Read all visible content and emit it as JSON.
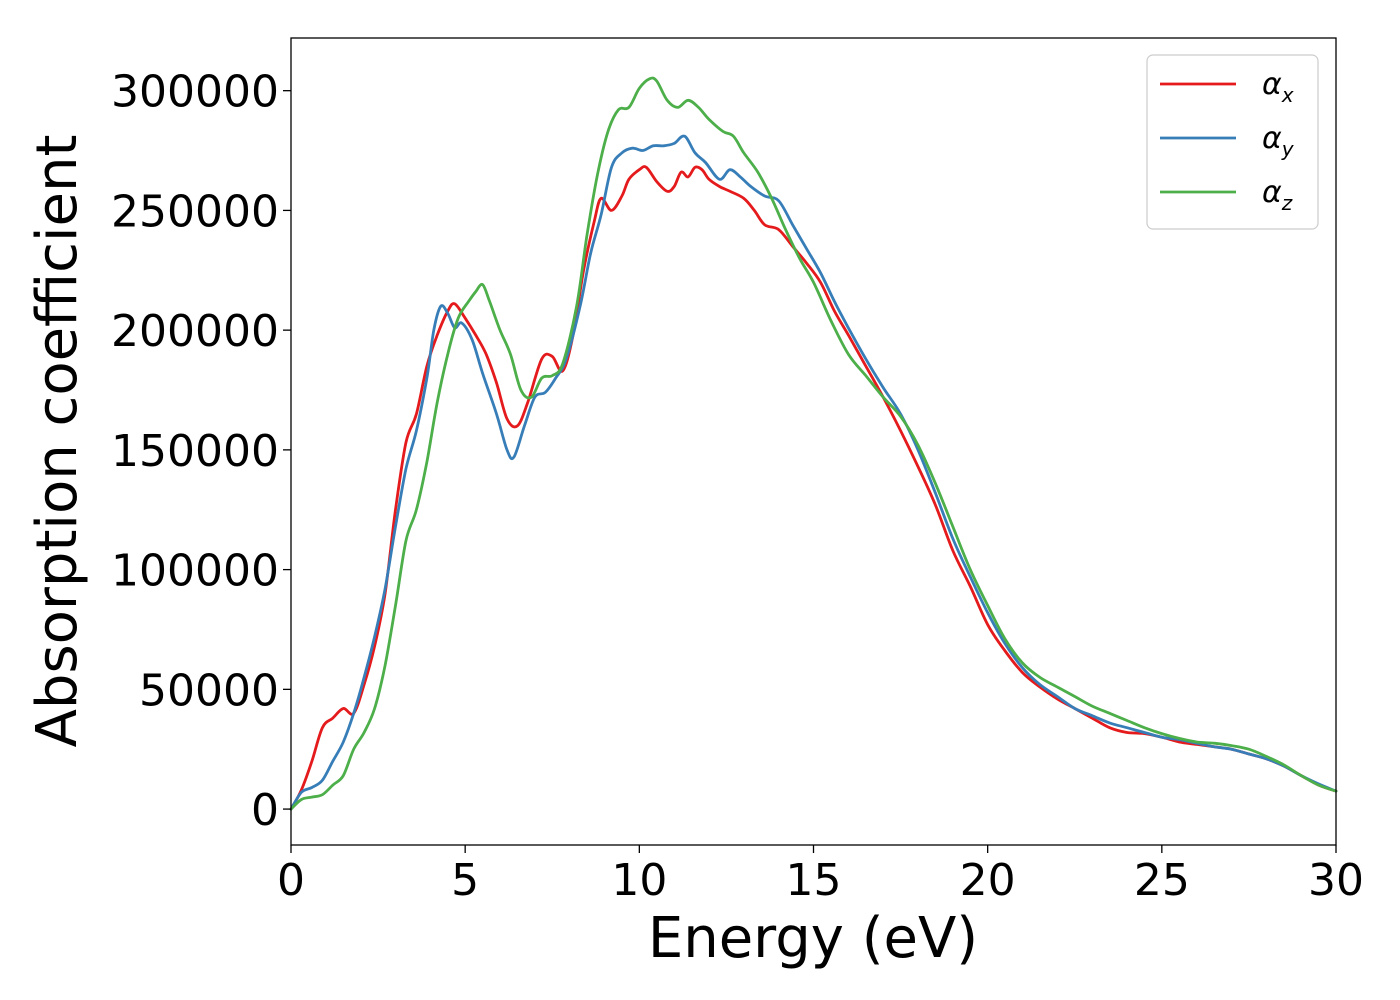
{
  "chart_data": {
    "type": "line",
    "title": "",
    "xlabel": "Energy (eV)",
    "ylabel": "Absorption coefficient",
    "xlim": [
      0,
      30
    ],
    "ylim": [
      -15000,
      322000
    ],
    "xticks": [
      0,
      5,
      10,
      15,
      20,
      25,
      30
    ],
    "xtick_labels": [
      "0",
      "5",
      "10",
      "15",
      "20",
      "25",
      "30"
    ],
    "yticks": [
      0,
      50000,
      100000,
      150000,
      200000,
      250000,
      300000
    ],
    "ytick_labels": [
      "0",
      "50000",
      "100000",
      "150000",
      "200000",
      "250000",
      "300000"
    ],
    "grid": false,
    "legend_position": "top-right",
    "series": [
      {
        "name": "α_x",
        "name_base": "α",
        "name_sub": "x",
        "color": "#e41a1c",
        "points": [
          [
            0,
            0
          ],
          [
            0.3,
            8000
          ],
          [
            0.6,
            20000
          ],
          [
            0.9,
            34000
          ],
          [
            1.2,
            38000
          ],
          [
            1.5,
            42000
          ],
          [
            1.8,
            40000
          ],
          [
            2.1,
            52000
          ],
          [
            2.4,
            68000
          ],
          [
            2.7,
            90000
          ],
          [
            3.0,
            125000
          ],
          [
            3.3,
            153000
          ],
          [
            3.6,
            165000
          ],
          [
            3.9,
            185000
          ],
          [
            4.2,
            198000
          ],
          [
            4.5,
            208000
          ],
          [
            4.7,
            211000
          ],
          [
            5.0,
            205000
          ],
          [
            5.3,
            198000
          ],
          [
            5.6,
            190000
          ],
          [
            5.9,
            178000
          ],
          [
            6.2,
            163000
          ],
          [
            6.5,
            160000
          ],
          [
            6.8,
            170000
          ],
          [
            7.2,
            188000
          ],
          [
            7.5,
            189000
          ],
          [
            7.8,
            183000
          ],
          [
            8.1,
            198000
          ],
          [
            8.4,
            225000
          ],
          [
            8.7,
            245000
          ],
          [
            8.9,
            255000
          ],
          [
            9.2,
            250000
          ],
          [
            9.5,
            256000
          ],
          [
            9.7,
            263000
          ],
          [
            10.0,
            267000
          ],
          [
            10.2,
            268000
          ],
          [
            10.5,
            262000
          ],
          [
            10.8,
            258000
          ],
          [
            11.0,
            260000
          ],
          [
            11.2,
            266000
          ],
          [
            11.4,
            264000
          ],
          [
            11.6,
            268000
          ],
          [
            11.8,
            267000
          ],
          [
            12.0,
            263000
          ],
          [
            12.3,
            260000
          ],
          [
            12.6,
            258000
          ],
          [
            13.0,
            255000
          ],
          [
            13.3,
            250000
          ],
          [
            13.6,
            244000
          ],
          [
            14.0,
            242000
          ],
          [
            14.4,
            235000
          ],
          [
            14.8,
            228000
          ],
          [
            15.2,
            220000
          ],
          [
            15.6,
            208000
          ],
          [
            16.0,
            198000
          ],
          [
            16.5,
            185000
          ],
          [
            17.0,
            172000
          ],
          [
            17.5,
            158000
          ],
          [
            18.0,
            143000
          ],
          [
            18.5,
            127000
          ],
          [
            19.0,
            108000
          ],
          [
            19.5,
            93000
          ],
          [
            20.0,
            77000
          ],
          [
            20.5,
            66000
          ],
          [
            21.0,
            57000
          ],
          [
            21.5,
            51000
          ],
          [
            22.0,
            46000
          ],
          [
            22.5,
            42000
          ],
          [
            23.0,
            38000
          ],
          [
            23.5,
            34000
          ],
          [
            24.0,
            32000
          ],
          [
            24.5,
            31500
          ],
          [
            25.0,
            30000
          ],
          [
            25.5,
            28000
          ],
          [
            26.0,
            27000
          ],
          [
            26.5,
            26000
          ],
          [
            27.0,
            25000
          ],
          [
            27.5,
            23000
          ],
          [
            28.0,
            21000
          ],
          [
            28.5,
            18000
          ],
          [
            29.0,
            14000
          ],
          [
            29.5,
            10000
          ],
          [
            30.0,
            7500
          ]
        ]
      },
      {
        "name": "α_y",
        "name_base": "α",
        "name_sub": "y",
        "color": "#377eb8",
        "points": [
          [
            0,
            0
          ],
          [
            0.3,
            7000
          ],
          [
            0.6,
            9000
          ],
          [
            0.9,
            12000
          ],
          [
            1.2,
            20000
          ],
          [
            1.5,
            28000
          ],
          [
            1.8,
            40000
          ],
          [
            2.1,
            55000
          ],
          [
            2.4,
            72000
          ],
          [
            2.7,
            92000
          ],
          [
            3.0,
            118000
          ],
          [
            3.3,
            142000
          ],
          [
            3.6,
            158000
          ],
          [
            3.9,
            180000
          ],
          [
            4.1,
            200000
          ],
          [
            4.3,
            210000
          ],
          [
            4.5,
            207000
          ],
          [
            4.7,
            201000
          ],
          [
            4.9,
            203000
          ],
          [
            5.2,
            196000
          ],
          [
            5.5,
            182000
          ],
          [
            5.9,
            165000
          ],
          [
            6.2,
            150000
          ],
          [
            6.4,
            147000
          ],
          [
            6.7,
            160000
          ],
          [
            7.0,
            172000
          ],
          [
            7.3,
            174000
          ],
          [
            7.6,
            180000
          ],
          [
            7.9,
            188000
          ],
          [
            8.3,
            210000
          ],
          [
            8.6,
            232000
          ],
          [
            8.9,
            248000
          ],
          [
            9.2,
            268000
          ],
          [
            9.5,
            274000
          ],
          [
            9.8,
            276000
          ],
          [
            10.1,
            275000
          ],
          [
            10.4,
            277000
          ],
          [
            10.7,
            277000
          ],
          [
            11.0,
            278000
          ],
          [
            11.3,
            281000
          ],
          [
            11.6,
            274000
          ],
          [
            11.9,
            270000
          ],
          [
            12.3,
            263000
          ],
          [
            12.6,
            267000
          ],
          [
            12.9,
            264000
          ],
          [
            13.2,
            260000
          ],
          [
            13.6,
            256000
          ],
          [
            14.0,
            254000
          ],
          [
            14.4,
            244000
          ],
          [
            14.8,
            234000
          ],
          [
            15.2,
            224000
          ],
          [
            15.6,
            212000
          ],
          [
            16.0,
            201000
          ],
          [
            16.5,
            188000
          ],
          [
            17.0,
            176000
          ],
          [
            17.5,
            165000
          ],
          [
            18.0,
            150000
          ],
          [
            18.5,
            132000
          ],
          [
            19.0,
            113000
          ],
          [
            19.5,
            97000
          ],
          [
            20.0,
            82000
          ],
          [
            20.5,
            69000
          ],
          [
            21.0,
            59000
          ],
          [
            21.5,
            52000
          ],
          [
            22.0,
            47000
          ],
          [
            22.5,
            42000
          ],
          [
            23.0,
            39000
          ],
          [
            23.5,
            36000
          ],
          [
            24.0,
            34000
          ],
          [
            24.5,
            32000
          ],
          [
            25.0,
            30000
          ],
          [
            25.5,
            29000
          ],
          [
            26.0,
            27500
          ],
          [
            26.5,
            26000
          ],
          [
            27.0,
            25000
          ],
          [
            27.5,
            23000
          ],
          [
            28.0,
            21000
          ],
          [
            28.5,
            18000
          ],
          [
            29.0,
            14000
          ],
          [
            29.5,
            10500
          ],
          [
            30.0,
            7500
          ]
        ]
      },
      {
        "name": "α_z",
        "name_base": "α",
        "name_sub": "z",
        "color": "#4daf4a",
        "points": [
          [
            0,
            0
          ],
          [
            0.3,
            4000
          ],
          [
            0.6,
            5000
          ],
          [
            0.9,
            6000
          ],
          [
            1.2,
            10000
          ],
          [
            1.5,
            14000
          ],
          [
            1.8,
            25000
          ],
          [
            2.1,
            32000
          ],
          [
            2.4,
            42000
          ],
          [
            2.7,
            60000
          ],
          [
            3.0,
            85000
          ],
          [
            3.3,
            112000
          ],
          [
            3.6,
            125000
          ],
          [
            3.9,
            145000
          ],
          [
            4.2,
            170000
          ],
          [
            4.5,
            190000
          ],
          [
            4.8,
            205000
          ],
          [
            5.1,
            212000
          ],
          [
            5.3,
            216000
          ],
          [
            5.5,
            219000
          ],
          [
            5.7,
            212000
          ],
          [
            6.0,
            200000
          ],
          [
            6.3,
            190000
          ],
          [
            6.6,
            175000
          ],
          [
            6.9,
            172000
          ],
          [
            7.2,
            180000
          ],
          [
            7.5,
            181000
          ],
          [
            7.8,
            186000
          ],
          [
            8.2,
            210000
          ],
          [
            8.5,
            240000
          ],
          [
            8.8,
            265000
          ],
          [
            9.1,
            283000
          ],
          [
            9.4,
            292000
          ],
          [
            9.7,
            293000
          ],
          [
            10.0,
            301000
          ],
          [
            10.3,
            305000
          ],
          [
            10.5,
            304000
          ],
          [
            10.8,
            296000
          ],
          [
            11.1,
            293000
          ],
          [
            11.4,
            296000
          ],
          [
            11.7,
            293000
          ],
          [
            12.0,
            288000
          ],
          [
            12.4,
            283000
          ],
          [
            12.7,
            281000
          ],
          [
            13.0,
            274000
          ],
          [
            13.4,
            266000
          ],
          [
            13.8,
            255000
          ],
          [
            14.2,
            242000
          ],
          [
            14.6,
            230000
          ],
          [
            15.0,
            220000
          ],
          [
            15.5,
            204000
          ],
          [
            16.0,
            190000
          ],
          [
            16.5,
            181000
          ],
          [
            17.0,
            172000
          ],
          [
            17.5,
            164000
          ],
          [
            18.0,
            152000
          ],
          [
            18.5,
            136000
          ],
          [
            19.0,
            118000
          ],
          [
            19.5,
            100000
          ],
          [
            20.0,
            85000
          ],
          [
            20.5,
            71000
          ],
          [
            21.0,
            61000
          ],
          [
            21.5,
            55000
          ],
          [
            22.0,
            51000
          ],
          [
            22.5,
            47000
          ],
          [
            23.0,
            43000
          ],
          [
            23.5,
            40000
          ],
          [
            24.0,
            37000
          ],
          [
            24.5,
            34000
          ],
          [
            25.0,
            31500
          ],
          [
            25.5,
            29500
          ],
          [
            26.0,
            28000
          ],
          [
            26.5,
            27500
          ],
          [
            27.0,
            26500
          ],
          [
            27.5,
            25000
          ],
          [
            28.0,
            22000
          ],
          [
            28.5,
            18500
          ],
          [
            29.0,
            14000
          ],
          [
            29.5,
            10000
          ],
          [
            30.0,
            7500
          ]
        ]
      }
    ]
  }
}
